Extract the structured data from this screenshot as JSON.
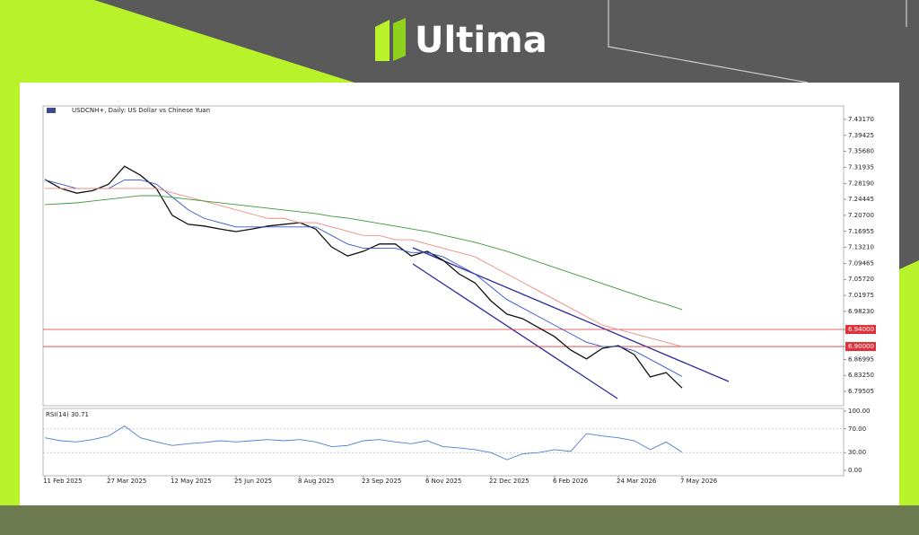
{
  "brand": "Ultima",
  "chart_data": {
    "type": "line",
    "title": "USDCNH+, Daily: US Dollar vs Chinese Yuan",
    "subtitle": "RSI(14) 30.71",
    "categories": [
      "11 Feb 2025",
      null,
      null,
      null,
      "27 Mar 2025",
      null,
      null,
      null,
      "12 May 2025",
      null,
      null,
      null,
      "25 Jun 2025",
      null,
      null,
      null,
      "8 Aug 2025",
      null,
      null,
      null,
      "23 Sep 2025",
      null,
      null,
      null,
      "6 Nov 2025",
      null,
      null,
      null,
      "22 Dec 2025",
      null,
      null,
      null,
      "6 Feb 2026",
      null,
      null,
      null,
      "24 Mar 2026",
      null,
      null,
      null,
      "7 May 2026"
    ],
    "ylim": [
      6.7614,
      7.4632
    ],
    "yticks": [
      {
        "value": 7.4317,
        "label": "7.43170"
      },
      {
        "value": 7.39425,
        "label": "7.39425"
      },
      {
        "value": 7.3568,
        "label": "7.35680"
      },
      {
        "value": 7.31935,
        "label": "7.31935"
      },
      {
        "value": 7.2819,
        "label": "7.28190"
      },
      {
        "value": 7.24445,
        "label": "7.24445"
      },
      {
        "value": 7.207,
        "label": "7.20700"
      },
      {
        "value": 7.16955,
        "label": "7.16955"
      },
      {
        "value": 7.1321,
        "label": "7.13210"
      },
      {
        "value": 7.09465,
        "label": "7.09465"
      },
      {
        "value": 7.0572,
        "label": "7.05720"
      },
      {
        "value": 7.01975,
        "label": "7.01975"
      },
      {
        "value": 6.9823,
        "label": "6.98230"
      },
      {
        "value": 6.94,
        "label": "6.94000",
        "color": "#e0303a"
      },
      {
        "value": 6.9,
        "label": "6.90000",
        "color": "#e0303a"
      },
      {
        "value": 6.86995,
        "label": "6.86995"
      },
      {
        "value": 6.8325,
        "label": "6.83250"
      },
      {
        "value": 6.79505,
        "label": "6.79505"
      }
    ],
    "y2lim": [
      0,
      100
    ],
    "y2ticks": [
      {
        "value": 100,
        "label": "100.00"
      },
      {
        "value": 70,
        "label": "70.00"
      },
      {
        "value": 30,
        "label": "30.00"
      },
      {
        "value": 0,
        "label": "0.00"
      }
    ],
    "series": [
      {
        "color": "#111111",
        "values": [
          7.291,
          7.27,
          7.259,
          7.265,
          7.28,
          7.322,
          7.301,
          7.27,
          7.207,
          7.186,
          7.182,
          7.175,
          7.169,
          7.175,
          7.182,
          7.186,
          7.19,
          7.175,
          7.133,
          7.112,
          7.123,
          7.14,
          7.14,
          7.112,
          7.123,
          7.102,
          7.07,
          7.049,
          7.007,
          6.976,
          6.965,
          6.944,
          6.923,
          6.892,
          6.871,
          6.896,
          6.902,
          6.881,
          6.829,
          6.839,
          6.803
        ]
      },
      {
        "color": "#3355cc",
        "values": [
          7.29,
          7.28,
          7.27,
          7.27,
          7.27,
          7.29,
          7.29,
          7.28,
          7.25,
          7.22,
          7.2,
          7.19,
          7.18,
          7.18,
          7.18,
          7.18,
          7.18,
          7.18,
          7.16,
          7.14,
          7.13,
          7.13,
          7.13,
          7.12,
          7.12,
          7.11,
          7.09,
          7.07,
          7.04,
          7.01,
          6.99,
          6.97,
          6.95,
          6.93,
          6.91,
          6.9,
          6.9,
          6.89,
          6.87,
          6.85,
          6.83
        ]
      },
      {
        "color": "#f08a80",
        "values": [
          7.27,
          7.27,
          7.27,
          7.27,
          7.27,
          7.27,
          7.27,
          7.27,
          7.26,
          7.25,
          7.24,
          7.23,
          7.22,
          7.21,
          7.2,
          7.2,
          7.19,
          7.19,
          7.18,
          7.17,
          7.16,
          7.16,
          7.15,
          7.15,
          7.14,
          7.13,
          7.12,
          7.11,
          7.09,
          7.07,
          7.05,
          7.03,
          7.01,
          6.99,
          6.97,
          6.95,
          6.94,
          6.93,
          6.92,
          6.91,
          6.9
        ]
      },
      {
        "color": "#3a9a3a",
        "values": [
          7.2321,
          7.2342,
          7.2363,
          7.2405,
          7.2447,
          7.2489,
          7.2531,
          7.2531,
          7.2489,
          7.2447,
          7.2405,
          7.2363,
          7.2321,
          7.2279,
          7.2237,
          7.2195,
          7.2153,
          7.2111,
          7.2048,
          7.2006,
          7.1943,
          7.188,
          7.1817,
          7.1754,
          7.1691,
          7.1607,
          7.1523,
          7.1439,
          7.1334,
          7.1229,
          7.1103,
          7.0977,
          7.0851,
          7.0725,
          7.0599,
          7.0472,
          7.0346,
          7.022,
          7.0094,
          6.9989,
          6.9863
        ]
      },
      {
        "color": "#4a7fd4",
        "axis": "y2",
        "values": [
          55,
          50,
          48,
          52,
          58,
          75,
          55,
          48,
          42,
          45,
          47,
          50,
          48,
          50,
          52,
          50,
          52,
          48,
          40,
          42,
          50,
          52,
          48,
          45,
          50,
          40,
          38,
          35,
          30,
          18,
          28,
          30,
          35,
          32,
          62,
          58,
          55,
          50,
          35,
          48,
          30.71
        ]
      }
    ]
  }
}
